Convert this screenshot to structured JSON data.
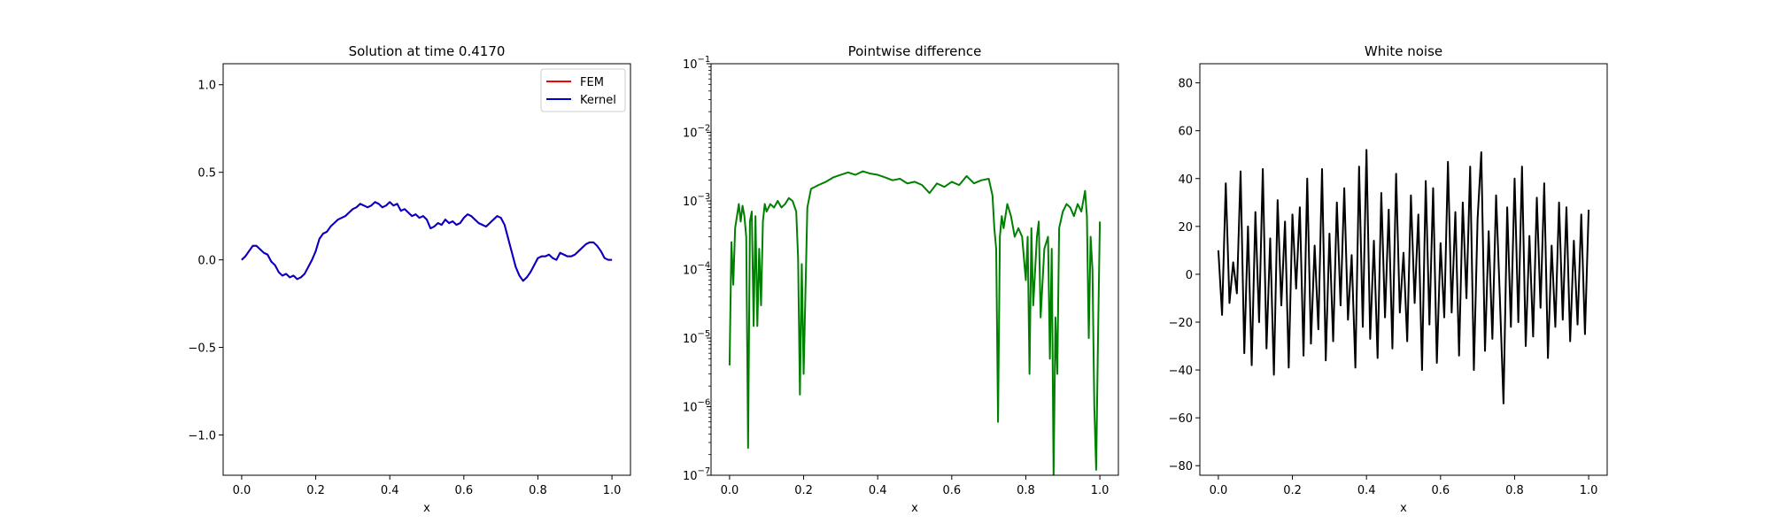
{
  "figure": {
    "background": "#ffffff"
  },
  "chart_data": [
    {
      "type": "line",
      "title": "Solution at time 0.4170",
      "xlabel": "x",
      "ylabel": "",
      "xlim": [
        -0.05,
        1.05
      ],
      "ylim": [
        -1.23,
        1.12
      ],
      "xticks": [
        0.0,
        0.2,
        0.4,
        0.6,
        0.8,
        1.0
      ],
      "xtick_labels": [
        "0.0",
        "0.2",
        "0.4",
        "0.6",
        "0.8",
        "1.0"
      ],
      "yticks": [
        -1.0,
        -0.5,
        0.0,
        0.5,
        1.0
      ],
      "ytick_labels": [
        "−1.0",
        "−0.5",
        "0.0",
        "0.5",
        "1.0"
      ],
      "legend": {
        "placement": "top-right"
      },
      "grid": false,
      "x": [
        0.0,
        0.01,
        0.02,
        0.03,
        0.04,
        0.05,
        0.06,
        0.07,
        0.08,
        0.09,
        0.1,
        0.11,
        0.12,
        0.13,
        0.14,
        0.15,
        0.16,
        0.17,
        0.18,
        0.19,
        0.2,
        0.21,
        0.22,
        0.23,
        0.24,
        0.25,
        0.26,
        0.27,
        0.28,
        0.29,
        0.3,
        0.31,
        0.32,
        0.33,
        0.34,
        0.35,
        0.36,
        0.37,
        0.38,
        0.39,
        0.4,
        0.41,
        0.42,
        0.43,
        0.44,
        0.45,
        0.46,
        0.47,
        0.48,
        0.49,
        0.5,
        0.51,
        0.52,
        0.53,
        0.54,
        0.55,
        0.56,
        0.57,
        0.58,
        0.59,
        0.6,
        0.61,
        0.62,
        0.63,
        0.64,
        0.65,
        0.66,
        0.67,
        0.68,
        0.69,
        0.7,
        0.71,
        0.72,
        0.73,
        0.74,
        0.75,
        0.76,
        0.77,
        0.78,
        0.79,
        0.8,
        0.81,
        0.82,
        0.83,
        0.84,
        0.85,
        0.86,
        0.87,
        0.88,
        0.89,
        0.9,
        0.91,
        0.92,
        0.93,
        0.94,
        0.95,
        0.96,
        0.97,
        0.98,
        0.99,
        1.0
      ],
      "series": [
        {
          "name": "FEM",
          "color": "#ff0000",
          "values": [
            0.0,
            0.02,
            0.05,
            0.08,
            0.08,
            0.06,
            0.04,
            0.03,
            -0.01,
            -0.03,
            -0.07,
            -0.09,
            -0.08,
            -0.1,
            -0.09,
            -0.11,
            -0.1,
            -0.08,
            -0.04,
            0.0,
            0.05,
            0.12,
            0.15,
            0.16,
            0.19,
            0.21,
            0.23,
            0.24,
            0.25,
            0.27,
            0.29,
            0.3,
            0.32,
            0.31,
            0.3,
            0.31,
            0.33,
            0.32,
            0.3,
            0.31,
            0.33,
            0.31,
            0.32,
            0.28,
            0.29,
            0.27,
            0.25,
            0.26,
            0.24,
            0.25,
            0.23,
            0.18,
            0.19,
            0.21,
            0.2,
            0.23,
            0.21,
            0.22,
            0.2,
            0.21,
            0.24,
            0.26,
            0.25,
            0.23,
            0.21,
            0.2,
            0.19,
            0.21,
            0.23,
            0.25,
            0.24,
            0.2,
            0.12,
            0.04,
            -0.04,
            -0.09,
            -0.12,
            -0.1,
            -0.07,
            -0.03,
            0.01,
            0.02,
            0.02,
            0.03,
            0.01,
            0.0,
            0.04,
            0.03,
            0.02,
            0.02,
            0.03,
            0.05,
            0.07,
            0.09,
            0.1,
            0.1,
            0.08,
            0.05,
            0.01,
            0.0,
            0.0
          ]
        },
        {
          "name": "Kernel",
          "color": "#0000cc",
          "values": [
            0.0,
            0.02,
            0.05,
            0.08,
            0.08,
            0.06,
            0.04,
            0.03,
            -0.01,
            -0.03,
            -0.07,
            -0.09,
            -0.08,
            -0.1,
            -0.09,
            -0.11,
            -0.1,
            -0.08,
            -0.04,
            0.0,
            0.05,
            0.12,
            0.15,
            0.16,
            0.19,
            0.21,
            0.23,
            0.24,
            0.25,
            0.27,
            0.29,
            0.3,
            0.32,
            0.31,
            0.3,
            0.31,
            0.33,
            0.32,
            0.3,
            0.31,
            0.33,
            0.31,
            0.32,
            0.28,
            0.29,
            0.27,
            0.25,
            0.26,
            0.24,
            0.25,
            0.23,
            0.18,
            0.19,
            0.21,
            0.2,
            0.23,
            0.21,
            0.22,
            0.2,
            0.21,
            0.24,
            0.26,
            0.25,
            0.23,
            0.21,
            0.2,
            0.19,
            0.21,
            0.23,
            0.25,
            0.24,
            0.2,
            0.12,
            0.04,
            -0.04,
            -0.09,
            -0.12,
            -0.1,
            -0.07,
            -0.03,
            0.01,
            0.02,
            0.02,
            0.03,
            0.01,
            0.0,
            0.04,
            0.03,
            0.02,
            0.02,
            0.03,
            0.05,
            0.07,
            0.09,
            0.1,
            0.1,
            0.08,
            0.05,
            0.01,
            0.0,
            0.0
          ]
        }
      ]
    },
    {
      "type": "line",
      "title": "Pointwise difference",
      "xlabel": "x",
      "ylabel": "",
      "yscale": "log",
      "xlim": [
        -0.05,
        1.05
      ],
      "ylim": [
        1e-07,
        0.1
      ],
      "xticks": [
        0.0,
        0.2,
        0.4,
        0.6,
        0.8,
        1.0
      ],
      "xtick_labels": [
        "0.0",
        "0.2",
        "0.4",
        "0.6",
        "0.8",
        "1.0"
      ],
      "yticks": [
        1e-07,
        1e-06,
        1e-05,
        0.0001,
        0.001,
        0.01,
        0.1
      ],
      "ytick_bases": [
        "10",
        "10",
        "10",
        "10",
        "10",
        "10",
        "10"
      ],
      "ytick_exponents": [
        "−7",
        "−6",
        "−5",
        "−4",
        "−3",
        "−2",
        "−1"
      ],
      "grid": false,
      "x": [
        0.0,
        0.005,
        0.01,
        0.015,
        0.02,
        0.025,
        0.03,
        0.035,
        0.04,
        0.045,
        0.05,
        0.055,
        0.06,
        0.065,
        0.07,
        0.075,
        0.08,
        0.085,
        0.09,
        0.095,
        0.1,
        0.11,
        0.12,
        0.13,
        0.14,
        0.15,
        0.16,
        0.17,
        0.18,
        0.185,
        0.19,
        0.195,
        0.2,
        0.21,
        0.22,
        0.24,
        0.26,
        0.28,
        0.3,
        0.32,
        0.34,
        0.36,
        0.38,
        0.4,
        0.42,
        0.44,
        0.46,
        0.48,
        0.5,
        0.52,
        0.54,
        0.56,
        0.58,
        0.6,
        0.62,
        0.64,
        0.66,
        0.68,
        0.7,
        0.71,
        0.715,
        0.72,
        0.725,
        0.73,
        0.735,
        0.74,
        0.75,
        0.76,
        0.77,
        0.78,
        0.79,
        0.8,
        0.805,
        0.81,
        0.815,
        0.82,
        0.83,
        0.835,
        0.84,
        0.85,
        0.86,
        0.865,
        0.87,
        0.875,
        0.88,
        0.885,
        0.89,
        0.9,
        0.91,
        0.92,
        0.93,
        0.94,
        0.95,
        0.96,
        0.965,
        0.97,
        0.975,
        0.98,
        0.985,
        0.99,
        0.995,
        1.0
      ],
      "series": [
        {
          "color": "#008000",
          "values": [
            4e-06,
            0.00025,
            6e-05,
            0.0004,
            0.0006,
            0.0009,
            0.0005,
            0.00085,
            0.0006,
            0.0003,
            2.5e-07,
            0.0005,
            0.0007,
            1.5e-05,
            0.0006,
            1.5e-05,
            0.0002,
            3e-05,
            0.0005,
            0.0009,
            0.0007,
            0.0009,
            0.0008,
            0.001,
            0.0008,
            0.0009,
            0.0011,
            0.001,
            0.0007,
            0.00015,
            1.5e-06,
            0.00012,
            3e-06,
            0.0008,
            0.0015,
            0.0017,
            0.0019,
            0.0022,
            0.0024,
            0.0026,
            0.0024,
            0.0027,
            0.0025,
            0.0024,
            0.0022,
            0.002,
            0.0021,
            0.0018,
            0.0019,
            0.0017,
            0.0013,
            0.0018,
            0.0016,
            0.0019,
            0.0017,
            0.0023,
            0.0018,
            0.002,
            0.0021,
            0.0012,
            0.0004,
            0.0002,
            6e-07,
            0.0003,
            0.0006,
            0.0004,
            0.0009,
            0.0006,
            0.0003,
            0.0004,
            0.0003,
            7e-05,
            0.0003,
            3e-06,
            0.0004,
            3e-05,
            0.0003,
            0.0005,
            2e-05,
            0.0002,
            0.0003,
            5e-06,
            0.0002,
            1e-07,
            2e-05,
            3e-06,
            0.0004,
            0.0007,
            0.0009,
            0.0008,
            0.0006,
            0.0009,
            0.0007,
            0.0014,
            0.0006,
            1e-05,
            0.0003,
            0.0001,
            1e-06,
            1.2e-07,
            1e-05,
            0.0005
          ]
        }
      ]
    },
    {
      "type": "line",
      "title": "White noise",
      "xlabel": "x",
      "ylabel": "",
      "xlim": [
        -0.05,
        1.05
      ],
      "ylim": [
        -84,
        88
      ],
      "xticks": [
        0.0,
        0.2,
        0.4,
        0.6,
        0.8,
        1.0
      ],
      "xtick_labels": [
        "0.0",
        "0.2",
        "0.4",
        "0.6",
        "0.8",
        "1.0"
      ],
      "yticks": [
        -80,
        -60,
        -40,
        -20,
        0,
        20,
        40,
        60,
        80
      ],
      "ytick_labels": [
        "−80",
        "−60",
        "−40",
        "−20",
        "0",
        "20",
        "40",
        "60",
        "80"
      ],
      "grid": false,
      "x": [
        0.0,
        0.01,
        0.02,
        0.03,
        0.04,
        0.05,
        0.06,
        0.07,
        0.08,
        0.09,
        0.1,
        0.11,
        0.12,
        0.13,
        0.14,
        0.15,
        0.16,
        0.17,
        0.18,
        0.19,
        0.2,
        0.21,
        0.22,
        0.23,
        0.24,
        0.25,
        0.26,
        0.27,
        0.28,
        0.29,
        0.3,
        0.31,
        0.32,
        0.33,
        0.34,
        0.35,
        0.36,
        0.37,
        0.38,
        0.39,
        0.4,
        0.41,
        0.42,
        0.43,
        0.44,
        0.45,
        0.46,
        0.47,
        0.48,
        0.49,
        0.5,
        0.51,
        0.52,
        0.53,
        0.54,
        0.55,
        0.56,
        0.57,
        0.58,
        0.59,
        0.6,
        0.61,
        0.62,
        0.63,
        0.64,
        0.65,
        0.66,
        0.67,
        0.68,
        0.69,
        0.7,
        0.71,
        0.72,
        0.73,
        0.74,
        0.75,
        0.76,
        0.77,
        0.78,
        0.79,
        0.8,
        0.81,
        0.82,
        0.83,
        0.84,
        0.85,
        0.86,
        0.87,
        0.88,
        0.89,
        0.9,
        0.91,
        0.92,
        0.93,
        0.94,
        0.95,
        0.96,
        0.97,
        0.98,
        0.99,
        1.0
      ],
      "series": [
        {
          "color": "#000000",
          "values": [
            10,
            -17,
            38,
            -12,
            5,
            -8,
            43,
            -33,
            20,
            -38,
            26,
            -20,
            44,
            -31,
            15,
            -42,
            31,
            -13,
            22,
            -39,
            25,
            -6,
            28,
            -34,
            40,
            -29,
            12,
            -23,
            44,
            -36,
            17,
            -28,
            30,
            -13,
            36,
            -19,
            8,
            -39,
            45,
            -22,
            52,
            -27,
            14,
            -35,
            34,
            -18,
            27,
            -31,
            42,
            -16,
            9,
            -28,
            33,
            -12,
            25,
            -40,
            39,
            -21,
            36,
            -37,
            13,
            -18,
            47,
            -16,
            26,
            -34,
            30,
            -10,
            45,
            -40,
            23,
            51,
            -32,
            18,
            -27,
            33,
            -9,
            -54,
            28,
            -22,
            40,
            -20,
            45,
            -30,
            16,
            -26,
            32,
            -14,
            38,
            -35,
            12,
            -22,
            30,
            -19,
            28,
            -28,
            14,
            -21,
            25,
            -25,
            27
          ]
        }
      ]
    }
  ]
}
